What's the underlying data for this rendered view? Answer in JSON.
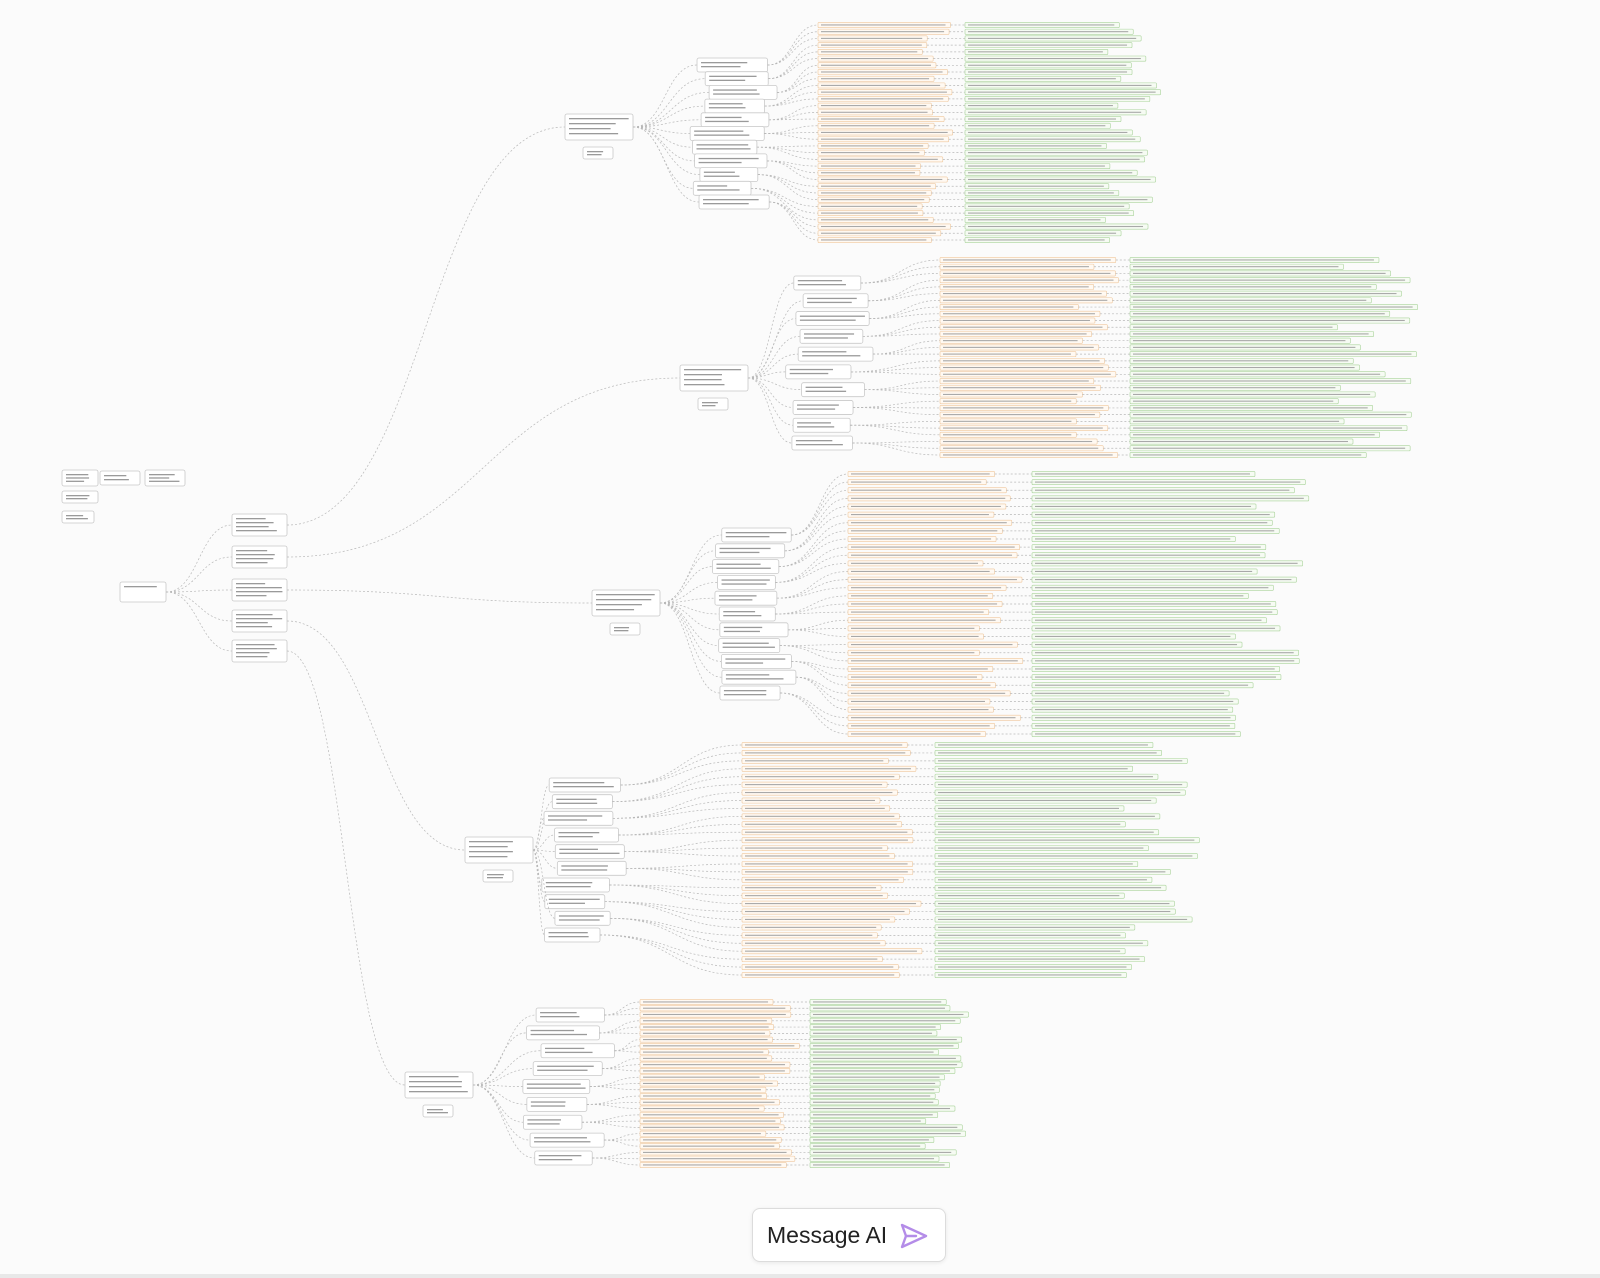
{
  "input": {
    "placeholder": "Message AI"
  }
}
